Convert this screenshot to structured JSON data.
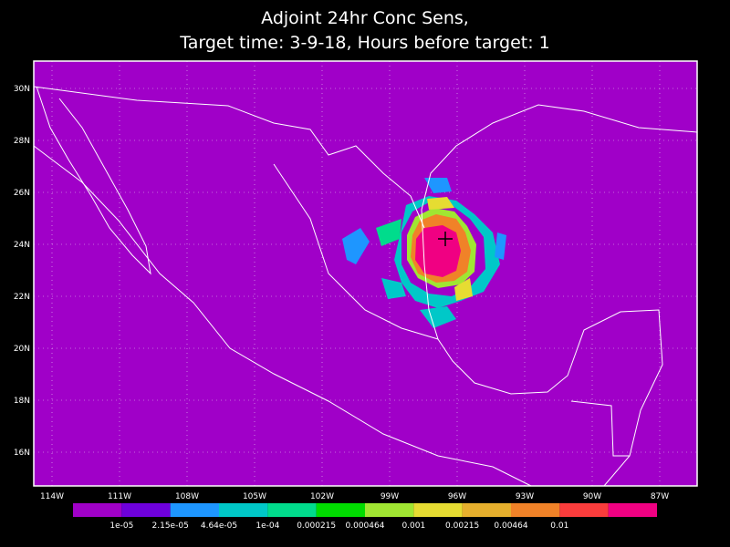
{
  "header": {
    "title": "Adjoint 24hr Conc Sens,",
    "subtitle": "Target time: 3-9-18, Hours before target: 1"
  },
  "map": {
    "lon_labels": [
      "114W",
      "111W",
      "108W",
      "105W",
      "102W",
      "99W",
      "96W",
      "93W",
      "90W",
      "87W"
    ],
    "lat_labels": [
      "30N",
      "28N",
      "26N",
      "24N",
      "22N",
      "20N",
      "18N",
      "16N"
    ]
  },
  "colorbar": {
    "colors": [
      "#a000c8",
      "#6e00dc",
      "#1e96ff",
      "#00c8c8",
      "#00dc8c",
      "#00dc00",
      "#a0e632",
      "#e6dc32",
      "#e6af2d",
      "#f08228",
      "#fa3c3c",
      "#f00082"
    ],
    "labels": [
      "1e-05",
      "2.15e-05",
      "4.64e-05",
      "1e-04",
      "0.000215",
      "0.000464",
      "0.001",
      "0.00215",
      "0.00464",
      "0.01"
    ]
  }
}
